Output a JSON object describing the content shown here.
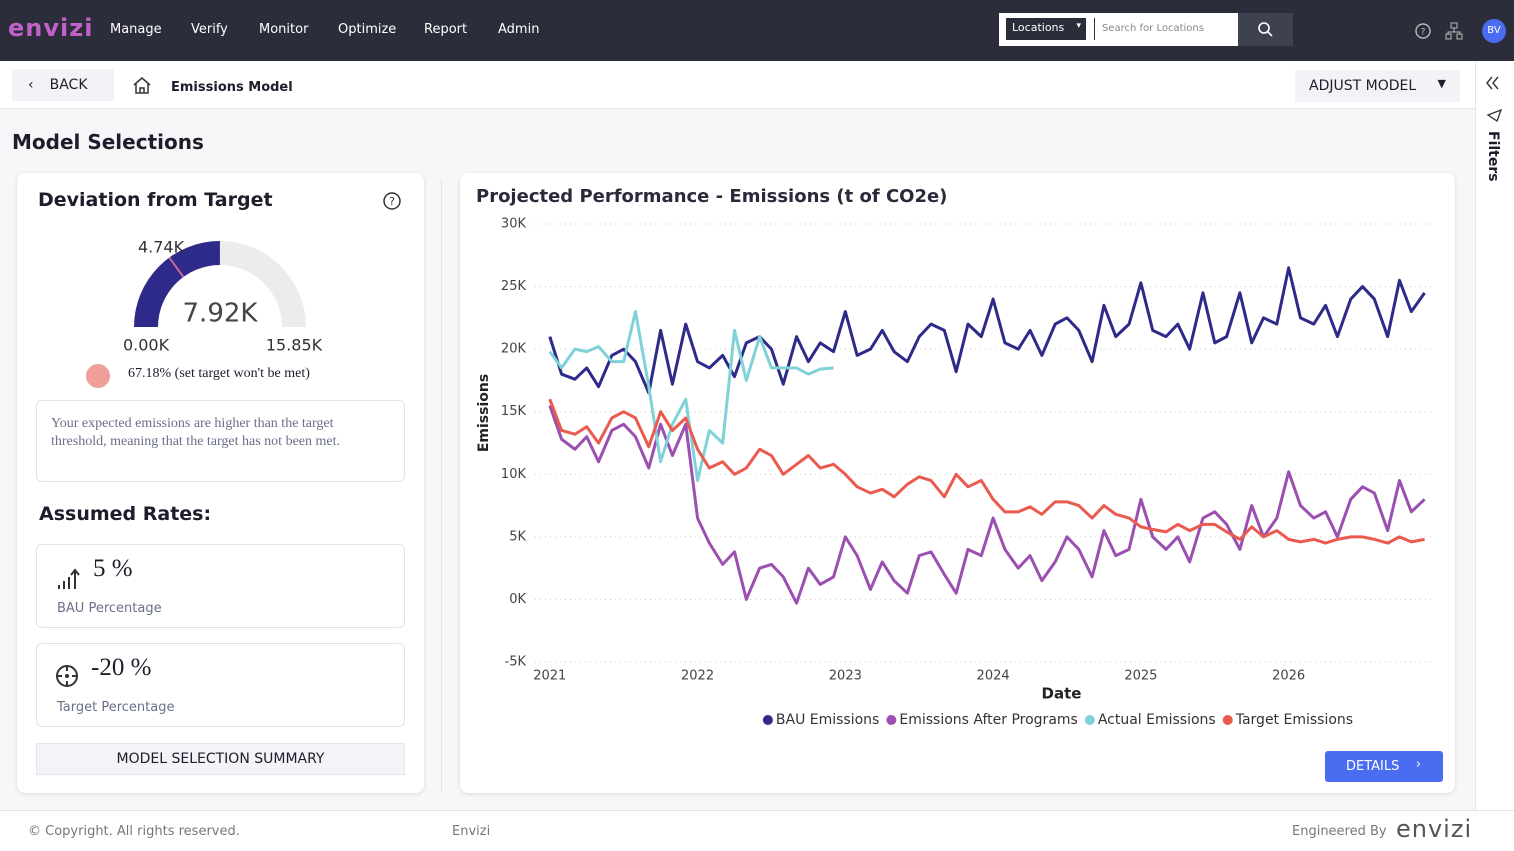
{
  "nav": {
    "brand": "envizi",
    "menu": [
      "Manage",
      "Verify",
      "Monitor",
      "Optimize",
      "Report",
      "Admin"
    ],
    "location_select": "Locations",
    "search_placeholder": "Search for Locations",
    "avatar": "BV"
  },
  "subheader": {
    "back": "BACK",
    "breadcrumb": "Emissions Model",
    "adjust": "ADJUST MODEL",
    "filters": "Filters"
  },
  "page_title": "Model Selections",
  "deviation": {
    "title": "Deviation from Target",
    "gauge": {
      "min": {
        "value": 0,
        "label": "0.00K"
      },
      "max": {
        "value": 15850,
        "label": "15.85K"
      },
      "value": {
        "value": 7920,
        "label": "7.92K"
      },
      "target": {
        "value": 4740,
        "label": "4.74K"
      },
      "color": "#2e2a8a",
      "track_color": "#ececec",
      "target_color": "#d0679a"
    },
    "status": "67.18% (set target won't be met)",
    "message": "Your expected emissions are higher than the target threshold, meaning that the target has not been met."
  },
  "rates": {
    "title": "Assumed Rates:",
    "items": [
      {
        "value": "5 %",
        "label": "BAU Percentage"
      },
      {
        "value": "-20 %",
        "label": "Target Percentage"
      }
    ],
    "summary_button": "MODEL SELECTION SUMMARY"
  },
  "details_button": "DETAILS",
  "chart_data": {
    "type": "line",
    "title": "Projected Performance - Emissions (t of CO2e)",
    "x_label": "Date",
    "y_label": "Emissions",
    "x": [
      2021,
      2021.08,
      2021.17,
      2021.25,
      2021.33,
      2021.42,
      2021.5,
      2021.58,
      2021.67,
      2021.75,
      2021.83,
      2021.92,
      2022,
      2022.08,
      2022.17,
      2022.25,
      2022.33,
      2022.42,
      2022.5,
      2022.58,
      2022.67,
      2022.75,
      2022.83,
      2022.92,
      2023,
      2023.08,
      2023.17,
      2023.25,
      2023.33,
      2023.42,
      2023.5,
      2023.58,
      2023.67,
      2023.75,
      2023.83,
      2023.92,
      2024,
      2024.08,
      2024.17,
      2024.25,
      2024.33,
      2024.42,
      2024.5,
      2024.58,
      2024.67,
      2024.75,
      2024.83,
      2024.92,
      2025,
      2025.08,
      2025.17,
      2025.25,
      2025.33,
      2025.42,
      2025.5,
      2025.58,
      2025.67,
      2025.75,
      2025.83,
      2025.92,
      2026,
      2026.08,
      2026.17,
      2026.25,
      2026.33,
      2026.42,
      2026.5,
      2026.58,
      2026.67,
      2026.75,
      2026.83,
      2026.92
    ],
    "xlim": [
      2020.9,
      2026.97
    ],
    "xticks": [
      2021,
      2022,
      2023,
      2024,
      2025,
      2026
    ],
    "ylim": [
      -5000,
      30000
    ],
    "yticks": [
      {
        "value": -5000,
        "label": "-5K"
      },
      {
        "value": 0,
        "label": "0K"
      },
      {
        "value": 5000,
        "label": "5K"
      },
      {
        "value": 10000,
        "label": "10K"
      },
      {
        "value": 15000,
        "label": "15K"
      },
      {
        "value": 20000,
        "label": "20K"
      },
      {
        "value": 25000,
        "label": "25K"
      },
      {
        "value": 30000,
        "label": "30K"
      }
    ],
    "grid": true,
    "legend": "bottom",
    "series": [
      {
        "name": "BAU Emissions",
        "color": "#2e2a8a",
        "values": [
          21000,
          18000,
          17600,
          18500,
          17000,
          19500,
          20000,
          19000,
          16500,
          21500,
          17200,
          22000,
          19000,
          18500,
          19500,
          17800,
          20500,
          21000,
          20000,
          17200,
          21000,
          19000,
          20500,
          19800,
          23000,
          19500,
          20000,
          21500,
          19800,
          19000,
          21000,
          22000,
          21500,
          18200,
          22000,
          21000,
          24000,
          20500,
          20000,
          21500,
          19500,
          22000,
          22500,
          21500,
          19000,
          23500,
          21000,
          22000,
          25300,
          21500,
          21000,
          22000,
          20000,
          24500,
          20500,
          21000,
          24500,
          20500,
          22500,
          22000,
          26500,
          22500,
          22000,
          23500,
          21000,
          24000,
          25000,
          24000,
          21000,
          25500,
          23000,
          24500
        ]
      },
      {
        "name": "Emissions After Programs",
        "color": "#9b4fb0",
        "values": [
          15500,
          12800,
          12000,
          13000,
          11000,
          13500,
          14000,
          13000,
          10500,
          14000,
          11500,
          14000,
          6500,
          4500,
          2800,
          3800,
          0,
          2500,
          2800,
          1800,
          -300,
          2500,
          1200,
          1800,
          5000,
          3500,
          800,
          3000,
          1500,
          500,
          3500,
          3800,
          2000,
          500,
          4000,
          3500,
          6500,
          4000,
          2500,
          3500,
          1500,
          3000,
          5000,
          4000,
          1800,
          5500,
          3500,
          4000,
          8000,
          5000,
          4000,
          5000,
          3000,
          6500,
          7000,
          6000,
          4000,
          7500,
          5000,
          6500,
          10200,
          7500,
          6500,
          7000,
          5000,
          8000,
          9000,
          8500,
          5500,
          9500,
          7000,
          8000
        ]
      },
      {
        "name": "Actual Emissions",
        "color": "#7fd3d8",
        "values": [
          19800,
          18500,
          20000,
          19800,
          20200,
          19000,
          19000,
          23000,
          17000,
          11000,
          14000,
          16000,
          9500,
          13500,
          12500,
          21500,
          17500,
          21000,
          18500,
          18500,
          18500,
          18000,
          18400,
          18500,
          null,
          null,
          null,
          null,
          null,
          null,
          null,
          null,
          null,
          null,
          null,
          null,
          null,
          null,
          null,
          null,
          null,
          null,
          null,
          null,
          null,
          null,
          null,
          null,
          null,
          null,
          null,
          null,
          null,
          null,
          null,
          null,
          null,
          null,
          null,
          null,
          null,
          null,
          null,
          null,
          null,
          null,
          null,
          null,
          null,
          null,
          null,
          null
        ]
      },
      {
        "name": "Target Emissions",
        "color": "#ea5a4f",
        "values": [
          16000,
          13500,
          13200,
          13800,
          12500,
          14500,
          15000,
          14500,
          12200,
          15000,
          13500,
          14500,
          12000,
          10500,
          11000,
          10000,
          10500,
          12000,
          11500,
          10000,
          10800,
          11500,
          10500,
          10800,
          10000,
          9000,
          8500,
          8800,
          8200,
          9200,
          9800,
          9500,
          8200,
          10000,
          9000,
          9500,
          8000,
          7000,
          7000,
          7400,
          6800,
          7800,
          7800,
          7500,
          6500,
          7500,
          6800,
          6500,
          5800,
          5600,
          5400,
          6000,
          5500,
          6000,
          6000,
          5400,
          4800,
          5800,
          5000,
          5500,
          4800,
          4600,
          4800,
          4500,
          4800,
          5000,
          5000,
          4800,
          4500,
          5000,
          4600,
          4800
        ]
      }
    ]
  },
  "footer": {
    "copyright": "© Copyright. All rights reserved.",
    "center": "Envizi",
    "engineered": "Engineered By",
    "brand": "envizi"
  }
}
